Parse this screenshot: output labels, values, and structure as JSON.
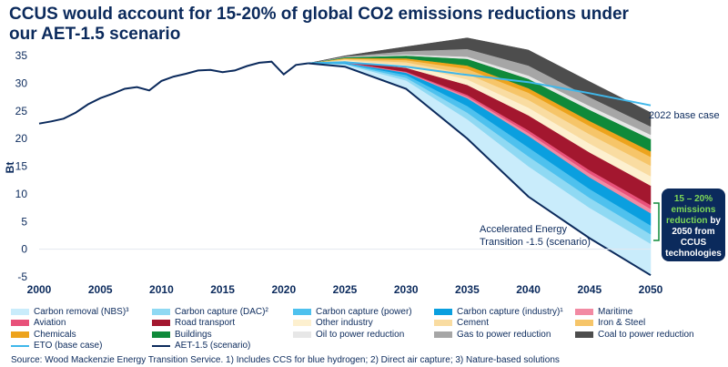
{
  "title": "CCUS would account for 15-20% of global CO2 emissions reductions under our AET-1.5 scenario",
  "source": "Source: Wood Mackenzie Energy Transition Service. 1) Includes CCS for blue hydrogen; 2) Direct air capture; 3) Nature-based solutions",
  "annotations": {
    "base_case": "2022 base case",
    "aet_line1": "Accelerated Energy",
    "aet_line2": "Transition -1.5 (scenario)"
  },
  "callout": {
    "line1": "15 – 20%",
    "line2": "emissions",
    "line3": "reduction",
    "line3_rest": "by",
    "line4": "2050 from",
    "line5": "CCUS",
    "line6": "technologies"
  },
  "chart_data": {
    "type": "area",
    "ylabel": "Bt",
    "xlim": [
      2000,
      2050
    ],
    "ylim": [
      -5,
      35
    ],
    "x_ticks": [
      2000,
      2005,
      2010,
      2015,
      2020,
      2025,
      2030,
      2035,
      2040,
      2045,
      2050
    ],
    "y_ticks": [
      -5,
      0,
      5,
      10,
      15,
      20,
      25,
      30,
      35
    ],
    "history": {
      "x": [
        2000,
        2001,
        2002,
        2003,
        2004,
        2005,
        2006,
        2007,
        2008,
        2009,
        2010,
        2011,
        2012,
        2013,
        2014,
        2015,
        2016,
        2017,
        2018,
        2019,
        2020,
        2021,
        2022
      ],
      "y": [
        22.7,
        23.1,
        23.6,
        24.7,
        26.2,
        27.3,
        28.1,
        29.0,
        29.3,
        28.7,
        30.4,
        31.2,
        31.7,
        32.3,
        32.4,
        32.0,
        32.3,
        33.1,
        33.7,
        33.9,
        31.6,
        33.3,
        33.6
      ]
    },
    "eto_base_case": {
      "x": [
        2022,
        2025,
        2030,
        2035,
        2040,
        2045,
        2050
      ],
      "y": [
        33.6,
        33.8,
        33.0,
        31.5,
        30.2,
        28.2,
        26.0
      ]
    },
    "aet_1_5": {
      "x": [
        2022,
        2025,
        2030,
        2035,
        2040,
        2045,
        2050
      ],
      "y": [
        33.6,
        33.0,
        29.0,
        20.0,
        9.5,
        2.0,
        -4.7
      ]
    },
    "wedges_years": [
      2022,
      2025,
      2030,
      2035,
      2040,
      2045,
      2050
    ],
    "wedges": [
      {
        "name": "Carbon removal (NBS)³",
        "color": "#c9ecfb",
        "values": [
          0,
          0.4,
          1.5,
          3.5,
          5.5,
          5.5,
          5.7
        ]
      },
      {
        "name": "Carbon capture (DAC)²",
        "color": "#8fd9f3",
        "values": [
          0,
          0.1,
          0.5,
          1.2,
          1.8,
          1.8,
          1.7
        ]
      },
      {
        "name": "Carbon capture (power)",
        "color": "#4ec1ee",
        "values": [
          0,
          0.1,
          0.5,
          1.2,
          1.6,
          1.6,
          1.6
        ]
      },
      {
        "name": "Carbon capture (industry)¹",
        "color": "#0a9fdf",
        "values": [
          0,
          0.1,
          0.4,
          1.4,
          2.1,
          2.1,
          2.2
        ]
      },
      {
        "name": "Maritime",
        "color": "#f28aa3",
        "values": [
          0,
          0.05,
          0.1,
          0.3,
          0.5,
          0.7,
          0.8
        ]
      },
      {
        "name": "Aviation",
        "color": "#e8517a",
        "values": [
          0,
          0.05,
          0.1,
          0.3,
          0.5,
          0.6,
          0.7
        ]
      },
      {
        "name": "Road transport",
        "color": "#a3172f",
        "values": [
          0,
          0.2,
          0.7,
          1.8,
          2.7,
          3.2,
          3.5
        ]
      },
      {
        "name": "Other industry",
        "color": "#fdf0cf",
        "values": [
          0,
          0.15,
          0.5,
          1.0,
          1.4,
          1.6,
          1.7
        ]
      },
      {
        "name": "Cement",
        "color": "#f9dca1",
        "values": [
          0,
          0.15,
          0.5,
          1.0,
          1.4,
          1.7,
          1.9
        ]
      },
      {
        "name": "Iron & Steel",
        "color": "#f6c569",
        "values": [
          0,
          0.15,
          0.4,
          0.9,
          1.3,
          1.5,
          1.6
        ]
      },
      {
        "name": "Chemicals",
        "color": "#eda31c",
        "values": [
          0,
          0.1,
          0.3,
          0.6,
          0.8,
          0.9,
          1.0
        ]
      },
      {
        "name": "Buildings",
        "color": "#0f8a3a",
        "values": [
          0,
          0.15,
          0.5,
          1.2,
          1.7,
          2.0,
          2.2
        ]
      },
      {
        "name": "Oil to power reduction",
        "color": "#e7e7e7",
        "values": [
          0,
          0.05,
          0.2,
          0.4,
          0.6,
          0.7,
          0.8
        ]
      },
      {
        "name": "Gas to power reduction",
        "color": "#a6a6a6",
        "values": [
          0,
          0.1,
          0.6,
          1.4,
          1.8,
          1.6,
          1.5
        ]
      },
      {
        "name": "Coal to power reduction",
        "color": "#4d4d4d",
        "values": [
          0,
          0.1,
          0.8,
          2.0,
          2.8,
          2.8,
          2.5
        ]
      }
    ],
    "legend": [
      [
        {
          "label": "Carbon removal (NBS)³",
          "color": "#c9ecfb",
          "kind": "box"
        },
        {
          "label": "Carbon capture (DAC)²",
          "color": "#8fd9f3",
          "kind": "box"
        },
        {
          "label": "Carbon capture (power)",
          "color": "#4ec1ee",
          "kind": "box"
        },
        {
          "label": "Carbon capture (industry)¹",
          "color": "#0a9fdf",
          "kind": "box"
        },
        {
          "label": "Maritime",
          "color": "#f28aa3",
          "kind": "box"
        }
      ],
      [
        {
          "label": "Aviation",
          "color": "#e8517a",
          "kind": "box"
        },
        {
          "label": "Road transport",
          "color": "#a3172f",
          "kind": "box"
        },
        {
          "label": "Other industry",
          "color": "#fdf0cf",
          "kind": "box"
        },
        {
          "label": "Cement",
          "color": "#f9dca1",
          "kind": "box"
        },
        {
          "label": "Iron & Steel",
          "color": "#f6c569",
          "kind": "box"
        }
      ],
      [
        {
          "label": "Chemicals",
          "color": "#eda31c",
          "kind": "box"
        },
        {
          "label": "Buildings",
          "color": "#0f8a3a",
          "kind": "box"
        },
        {
          "label": "Oil to power reduction",
          "color": "#e7e7e7",
          "kind": "box"
        },
        {
          "label": "Gas to power reduction",
          "color": "#a6a6a6",
          "kind": "box"
        },
        {
          "label": "Coal to power reduction",
          "color": "#4d4d4d",
          "kind": "box"
        }
      ],
      [
        {
          "label": "ETO (base case)",
          "color": "#3fb7ea",
          "kind": "line"
        },
        {
          "label": "AET-1.5 (scenario)",
          "color": "#0b2a5c",
          "kind": "line"
        }
      ]
    ],
    "colors": {
      "history": "#0b2a5c",
      "eto": "#3fb7ea",
      "aet": "#0b2a5c",
      "bracket": "#0f8a3a"
    }
  }
}
